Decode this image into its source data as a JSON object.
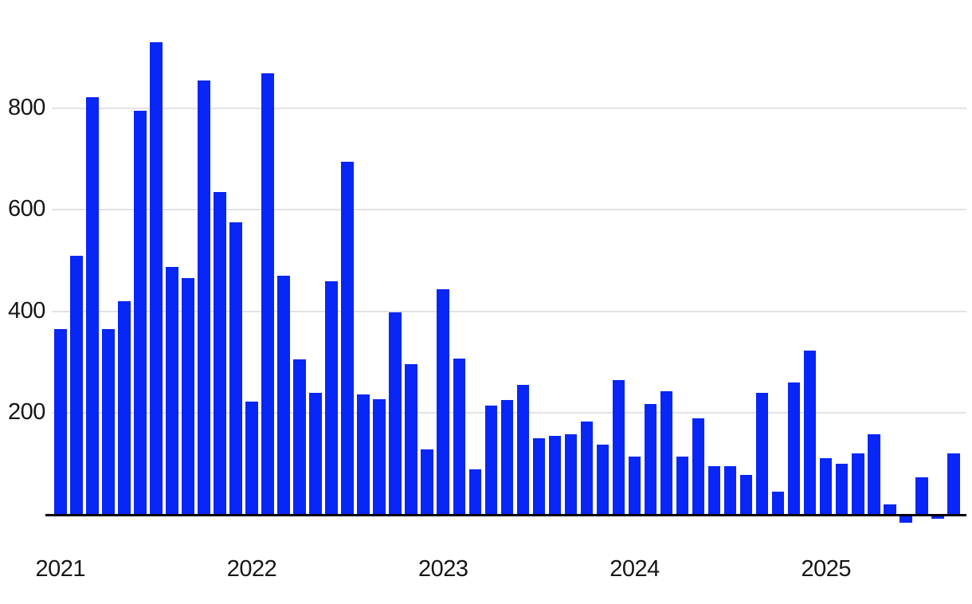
{
  "chart_data": {
    "type": "bar",
    "title": "",
    "xlabel": "",
    "ylabel": "",
    "x_unit": "month",
    "categories": [
      "2021-01",
      "2021-02",
      "2021-03",
      "2021-04",
      "2021-05",
      "2021-06",
      "2021-07",
      "2021-08",
      "2021-09",
      "2021-10",
      "2021-11",
      "2021-12",
      "2022-01",
      "2022-02",
      "2022-03",
      "2022-04",
      "2022-05",
      "2022-06",
      "2022-07",
      "2022-08",
      "2022-09",
      "2022-10",
      "2022-11",
      "2022-12",
      "2023-01",
      "2023-02",
      "2023-03",
      "2023-04",
      "2023-05",
      "2023-06",
      "2023-07",
      "2023-08",
      "2023-09",
      "2023-10",
      "2023-11",
      "2023-12",
      "2024-01",
      "2024-02",
      "2024-03",
      "2024-04",
      "2024-05",
      "2024-06",
      "2024-07",
      "2024-08",
      "2024-09",
      "2024-10",
      "2024-11",
      "2024-12",
      "2025-01",
      "2025-02",
      "2025-03",
      "2025-04",
      "2025-05",
      "2025-06",
      "2025-07",
      "2025-08",
      "2025-09"
    ],
    "values": [
      365,
      510,
      822,
      365,
      420,
      795,
      930,
      487,
      465,
      855,
      635,
      575,
      222,
      868,
      470,
      305,
      240,
      460,
      695,
      237,
      228,
      398,
      297,
      128,
      443,
      307,
      90,
      215,
      225,
      255,
      150,
      155,
      158,
      183,
      138,
      265,
      115,
      218,
      243,
      115,
      190,
      95,
      95,
      78,
      240,
      46,
      260,
      323,
      112,
      100,
      120,
      158,
      20,
      -13,
      73,
      -4,
      120
    ],
    "y_ticks": [
      "200",
      "400",
      "600",
      "800"
    ],
    "y_tick_values": [
      200,
      400,
      600,
      800
    ],
    "year_labels": [
      "2021",
      "2022",
      "2023",
      "2024",
      "2025"
    ],
    "ylim": [
      -30,
      950
    ],
    "grid": "horizontal",
    "legend": "none",
    "colors": {
      "bar": "#0826f5",
      "zero_line": "#000000",
      "gridline": "#e3e3e3",
      "label": "#161616",
      "background": "#ffffff"
    }
  }
}
